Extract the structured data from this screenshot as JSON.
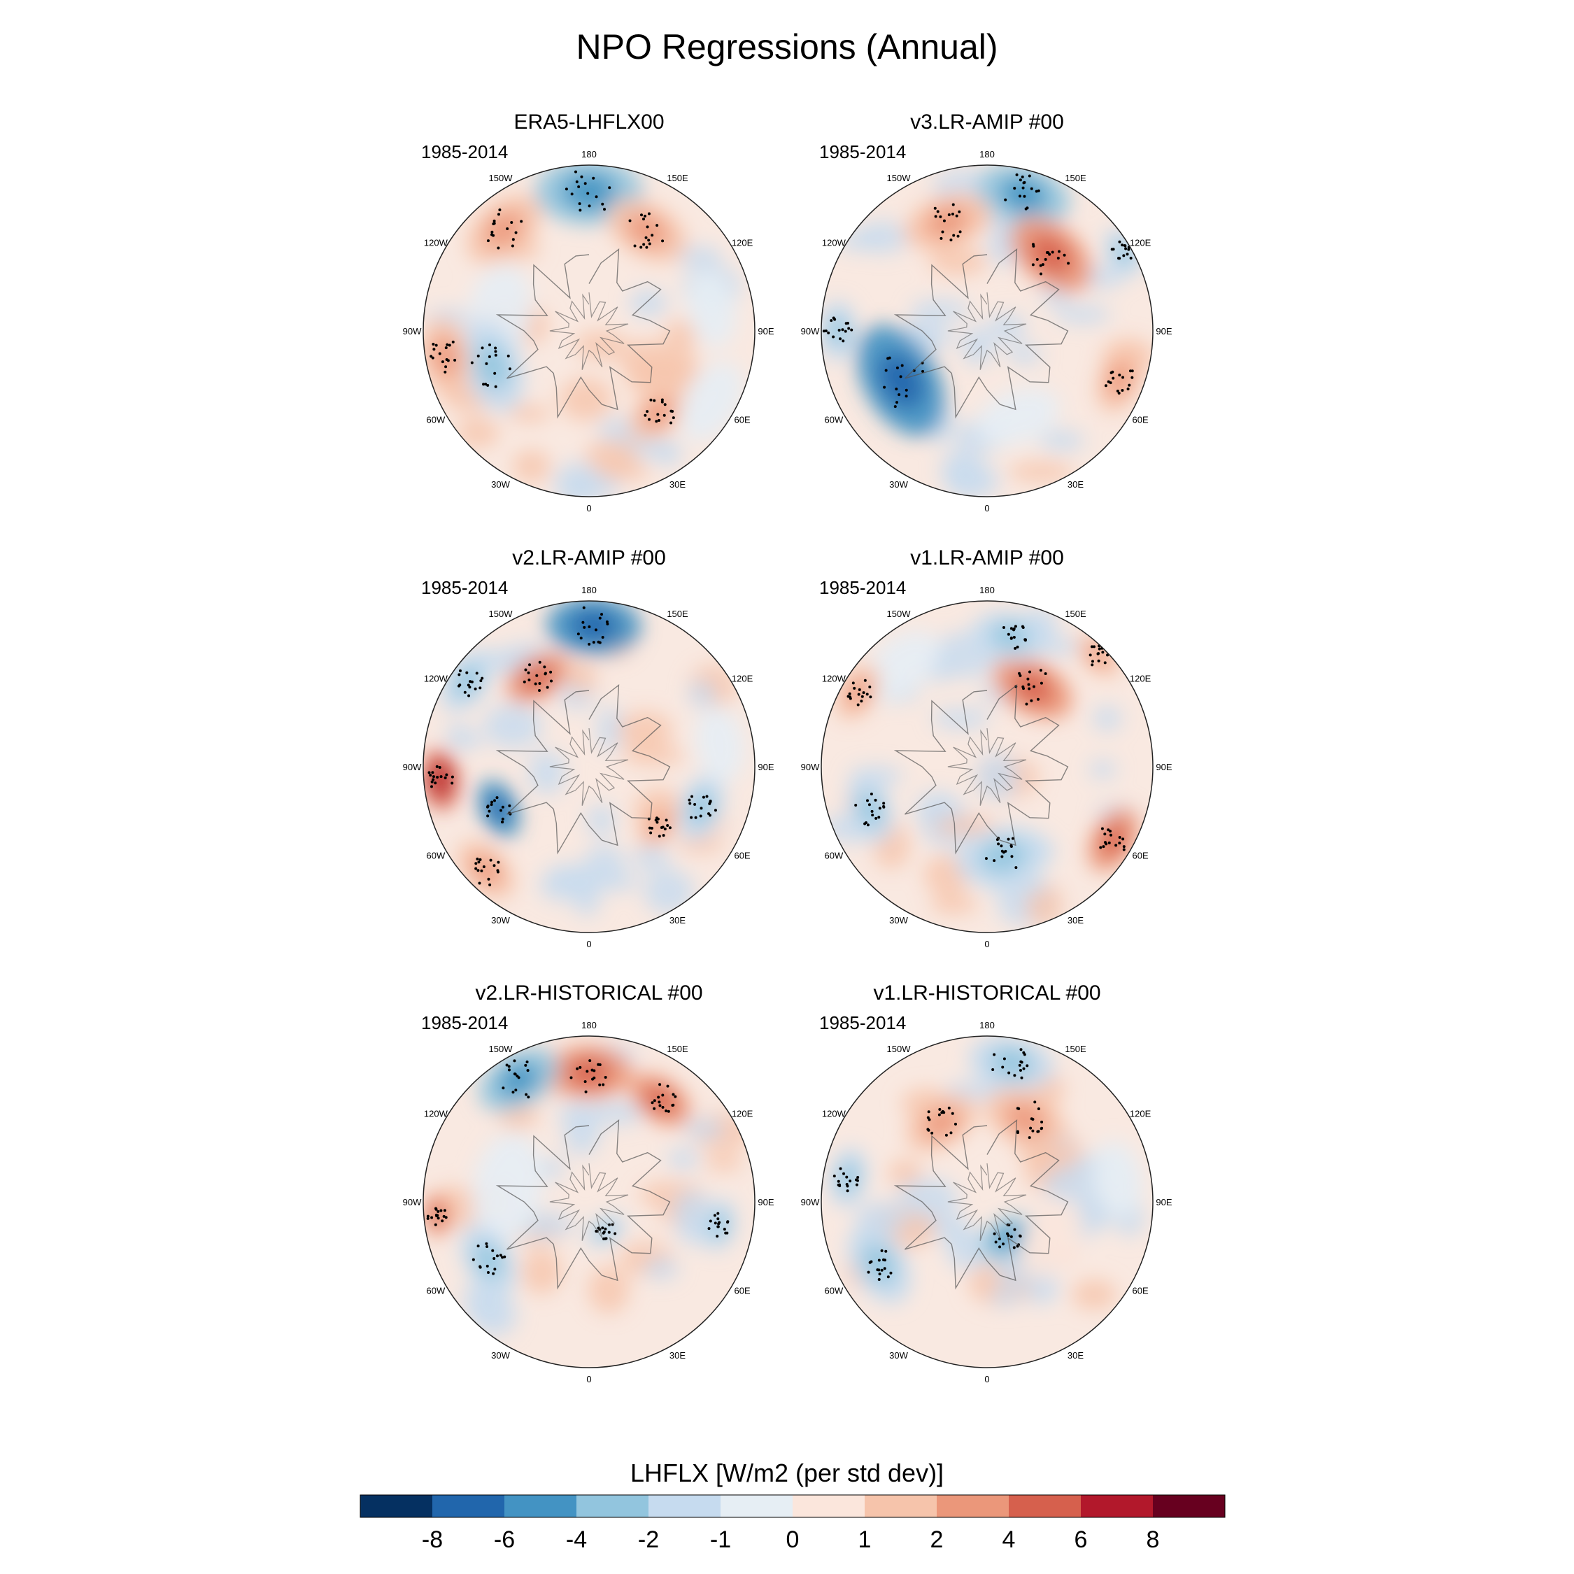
{
  "title": "NPO Regressions (Annual)",
  "chart_data": {
    "type": "heatmap",
    "title": "NPO Regressions (Annual)",
    "projection": "north polar stereographic",
    "variable": "LHFLX",
    "units_label": "LHFLX [W/m2 (per std dev)]",
    "longitude_labels": [
      "180",
      "150E",
      "120E",
      "90E",
      "60E",
      "30E",
      "0",
      "30W",
      "60W",
      "90W",
      "120W",
      "150W"
    ],
    "colorbar": {
      "ticks": [
        "-8",
        "-6",
        "-4",
        "-2",
        "-1",
        "0",
        "1",
        "2",
        "4",
        "6",
        "8"
      ],
      "colors": [
        "#053061",
        "#2166ac",
        "#4393c3",
        "#92c5de",
        "#c6dbef",
        "#e6eef4",
        "#fbe6dc",
        "#f6c4ab",
        "#eb977a",
        "#d6604d",
        "#b2182b",
        "#67001f"
      ]
    },
    "panels": [
      {
        "name": "ERA5-LHFLX00",
        "period": "1985-2014",
        "features": [
          {
            "lon": 180,
            "r": 0.84,
            "value": -4,
            "size": 0.25
          },
          {
            "lon": 150,
            "r": 0.7,
            "value": 2,
            "size": 0.2
          },
          {
            "lon": -140,
            "r": 0.8,
            "value": 2,
            "size": 0.2
          },
          {
            "lon": -100,
            "r": 0.55,
            "value": -1,
            "size": 0.24
          },
          {
            "lon": -70,
            "r": 0.62,
            "value": -2,
            "size": 0.22
          },
          {
            "lon": -80,
            "r": 0.88,
            "value": 2,
            "size": 0.18
          },
          {
            "lon": 40,
            "r": 0.65,
            "value": 2,
            "size": 0.16
          },
          {
            "lon": 60,
            "r": 0.85,
            "value": -1,
            "size": 0.2
          },
          {
            "lon": 100,
            "r": 0.75,
            "value": -1,
            "size": 0.18
          }
        ]
      },
      {
        "name": "v3.LR-AMIP  #00",
        "period": "1985-2014",
        "features": [
          {
            "lon": 165,
            "r": 0.85,
            "value": -4,
            "size": 0.22
          },
          {
            "lon": 140,
            "r": 0.6,
            "value": 4,
            "size": 0.22
          },
          {
            "lon": -160,
            "r": 0.7,
            "value": 2,
            "size": 0.2
          },
          {
            "lon": -60,
            "r": 0.6,
            "value": -6,
            "size": 0.28
          },
          {
            "lon": -90,
            "r": 0.9,
            "value": -2,
            "size": 0.14
          },
          {
            "lon": 70,
            "r": 0.85,
            "value": 2,
            "size": 0.16
          },
          {
            "lon": 120,
            "r": 0.95,
            "value": -2,
            "size": 0.12
          },
          {
            "lon": 20,
            "r": 0.55,
            "value": -1,
            "size": 0.2
          }
        ]
      },
      {
        "name": "v2.LR-AMIP  #00",
        "period": "1985-2014",
        "features": [
          {
            "lon": 178,
            "r": 0.85,
            "value": -6,
            "size": 0.22
          },
          {
            "lon": -150,
            "r": 0.62,
            "value": 4,
            "size": 0.16
          },
          {
            "lon": -125,
            "r": 0.9,
            "value": -2,
            "size": 0.16
          },
          {
            "lon": -85,
            "r": 0.9,
            "value": 6,
            "size": 0.14
          },
          {
            "lon": -65,
            "r": 0.6,
            "value": -6,
            "size": 0.14
          },
          {
            "lon": -45,
            "r": 0.88,
            "value": 2,
            "size": 0.16
          },
          {
            "lon": 70,
            "r": 0.72,
            "value": -2,
            "size": 0.16
          },
          {
            "lon": 100,
            "r": 0.8,
            "value": -1,
            "size": 0.18
          },
          {
            "lon": 50,
            "r": 0.55,
            "value": 2,
            "size": 0.12
          }
        ]
      },
      {
        "name": "v1.LR-AMIP  #00",
        "period": "1985-2014",
        "features": [
          {
            "lon": 150,
            "r": 0.55,
            "value": 4,
            "size": 0.2
          },
          {
            "lon": 170,
            "r": 0.8,
            "value": -2,
            "size": 0.18
          },
          {
            "lon": -140,
            "r": 0.8,
            "value": -1,
            "size": 0.2
          },
          {
            "lon": -120,
            "r": 0.9,
            "value": 2,
            "size": 0.14
          },
          {
            "lon": -70,
            "r": 0.75,
            "value": -2,
            "size": 0.16
          },
          {
            "lon": 60,
            "r": 0.88,
            "value": 4,
            "size": 0.16
          },
          {
            "lon": 10,
            "r": 0.55,
            "value": -2,
            "size": 0.22
          },
          {
            "lon": 135,
            "r": 0.95,
            "value": 2,
            "size": 0.12
          }
        ]
      },
      {
        "name": "v2.LR-HISTORICAL  #00",
        "period": "1985-2014",
        "features": [
          {
            "lon": 180,
            "r": 0.78,
            "value": 4,
            "size": 0.2
          },
          {
            "lon": -150,
            "r": 0.85,
            "value": -4,
            "size": 0.2
          },
          {
            "lon": 145,
            "r": 0.75,
            "value": 4,
            "size": 0.16
          },
          {
            "lon": -100,
            "r": 0.5,
            "value": -1,
            "size": 0.26
          },
          {
            "lon": -85,
            "r": 0.92,
            "value": 4,
            "size": 0.1
          },
          {
            "lon": -60,
            "r": 0.7,
            "value": -2,
            "size": 0.18
          },
          {
            "lon": 80,
            "r": 0.8,
            "value": -2,
            "size": 0.12
          },
          {
            "lon": 30,
            "r": 0.2,
            "value": -2,
            "size": 0.1
          }
        ]
      },
      {
        "name": "v1.LR-HISTORICAL  #00",
        "period": "1985-2014",
        "features": [
          {
            "lon": 170,
            "r": 0.85,
            "value": -2,
            "size": 0.2
          },
          {
            "lon": 155,
            "r": 0.55,
            "value": 2,
            "size": 0.2
          },
          {
            "lon": -150,
            "r": 0.55,
            "value": 2,
            "size": 0.18
          },
          {
            "lon": -60,
            "r": 0.75,
            "value": -2,
            "size": 0.2
          },
          {
            "lon": 30,
            "r": 0.25,
            "value": -4,
            "size": 0.14
          },
          {
            "lon": 60,
            "r": 0.45,
            "value": 1,
            "size": 0.2
          },
          {
            "lon": 100,
            "r": 0.8,
            "value": -1,
            "size": 0.18
          },
          {
            "lon": -100,
            "r": 0.85,
            "value": -2,
            "size": 0.14
          }
        ]
      }
    ]
  },
  "colorbar_label": "LHFLX [W/m2 (per std dev)]"
}
